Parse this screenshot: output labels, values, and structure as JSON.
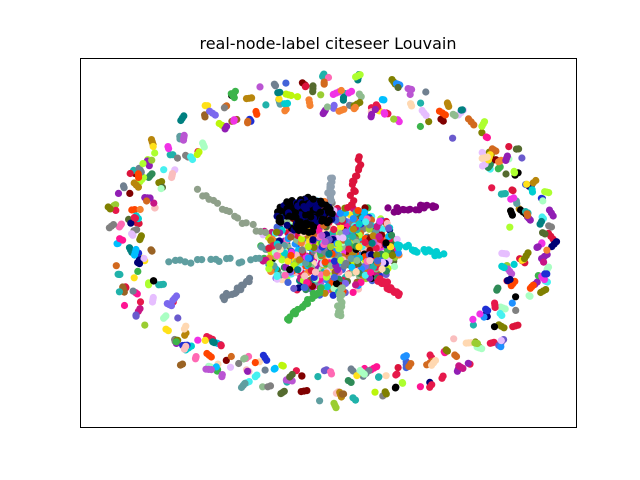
{
  "figure": {
    "title": "real-node-label citeseer Louvain",
    "background": "#ffffff",
    "frame_color": "#000000"
  },
  "graph": {
    "type": "network",
    "layout": "force-directed",
    "axes_visible": false,
    "edges_visible": false,
    "palette": [
      "#1f2fd4",
      "#e6194b",
      "#3cb44b",
      "#ffe119",
      "#4363d8",
      "#f58231",
      "#911eb4",
      "#46f0f0",
      "#f032e6",
      "#bcf60c",
      "#fabebe",
      "#008080",
      "#e6beff",
      "#9a6324",
      "#800000",
      "#aaffc3",
      "#808000",
      "#ffd8b1",
      "#000075",
      "#808080",
      "#000000",
      "#2e8b57",
      "#8fbc8f",
      "#20b2aa",
      "#dc143c",
      "#ff69b4",
      "#ba55d3",
      "#7b68ee",
      "#00bfff",
      "#1e90ff",
      "#9acd32",
      "#b8860b",
      "#708090",
      "#c71585",
      "#6a5acd",
      "#00ced1",
      "#ff4500",
      "#adff2f",
      "#556b2f",
      "#5f9ea0",
      "#d2691e",
      "#ff1493"
    ]
  }
}
